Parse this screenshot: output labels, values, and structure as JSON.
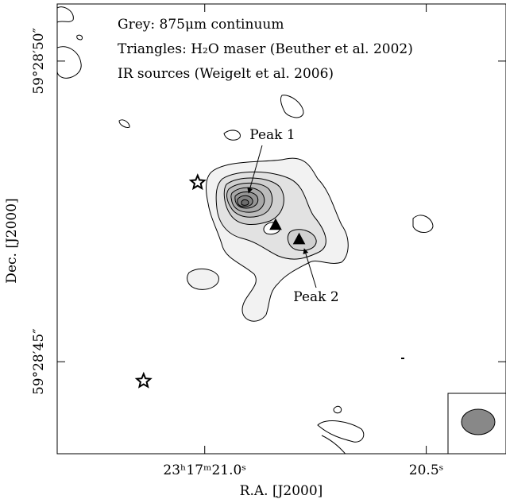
{
  "chart_data": {
    "type": "scatter",
    "legend_lines": [
      "Grey: 875μm continuum",
      "Triangles: H₂O maser (Beuther et al. 2002)",
      "IR sources (Weigelt et al. 2006)"
    ],
    "annotations": [
      "Peak 1",
      "Peak 2"
    ],
    "xlabel": "R.A. [J2000]",
    "ylabel": "Dec. [J2000]",
    "xlim": [
      21.333,
      20.32
    ],
    "ylim": [
      43.47,
      50.95
    ],
    "xticks": [
      {
        "value": 21.0,
        "label": "23ʰ17ᵐ21.0ˢ"
      },
      {
        "value": 20.5,
        "label": "20.5ˢ"
      }
    ],
    "yticks": [
      {
        "value": 45,
        "label": "59°28′45″"
      },
      {
        "value": 50,
        "label": "59°28′50″"
      }
    ],
    "series": [
      {
        "marker": "triangle",
        "color": "#000000",
        "x": [
          20.84,
          20.787
        ],
        "values": [
          47.28,
          47.04
        ]
      },
      {
        "marker": "star",
        "color": "#ffffff",
        "x": [
          21.016,
          21.138
        ],
        "values": [
          47.98,
          44.68
        ]
      }
    ]
  }
}
